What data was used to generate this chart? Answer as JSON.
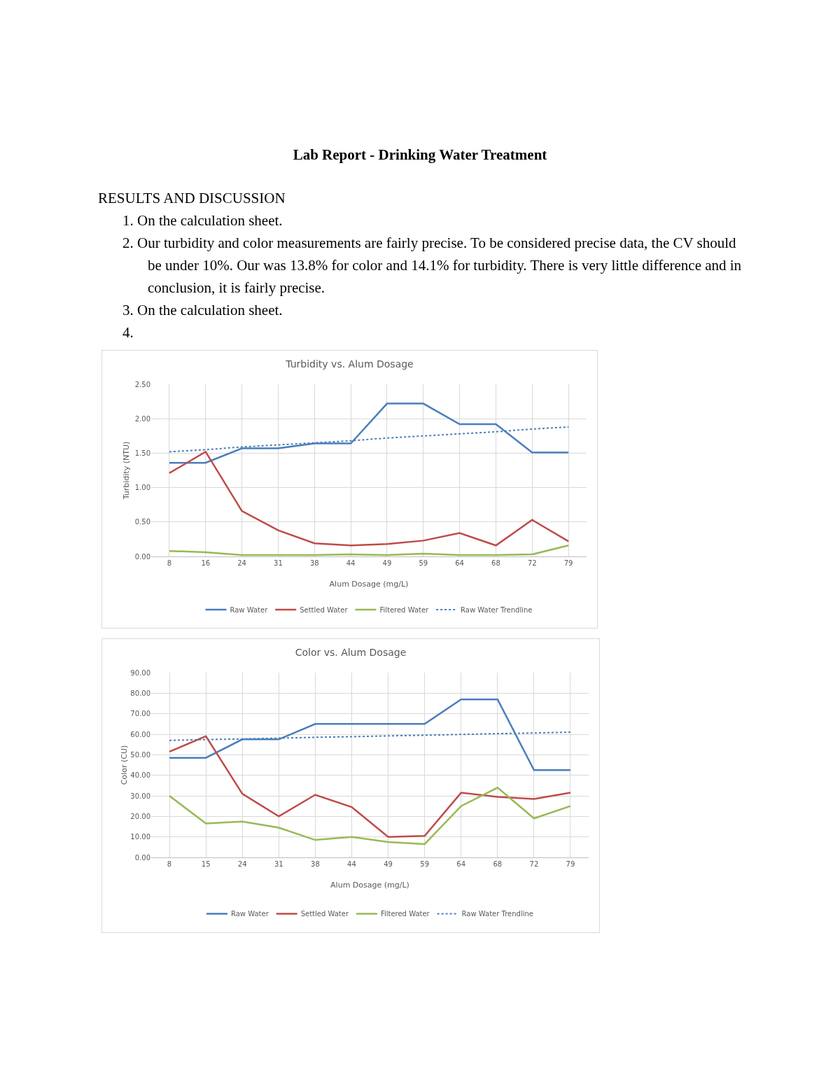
{
  "chart_data": [
    {
      "type": "other",
      "title": "Lab Report - Drinking Water Treatment",
      "subtitle": "RESULTS AND DISCUSSION",
      "annotations": [
        "1. On the calculation sheet.",
        "2. Our turbidity and color measurements are fairly precise. To be considered precise data, the CV should be under 10%. Our was 13.8% for color and 14.1% for turbidity. There is very little difference and in conclusion, it is fairly precise.",
        "3. On the calculation sheet.",
        "4."
      ]
    },
    {
      "type": "line",
      "title": "Turbidity vs. Alum Dosage",
      "xlabel": "Alum Dosage (mg/L)",
      "ylabel": "Turbidity (NTU)",
      "categories": [
        "8",
        "16",
        "24",
        "31",
        "38",
        "44",
        "49",
        "59",
        "64",
        "68",
        "72",
        "79"
      ],
      "ylim": [
        0,
        2.5
      ],
      "yticks": [
        {
          "value": 0,
          "label": "0.00"
        },
        {
          "value": 0.5,
          "label": "0.50"
        },
        {
          "value": 1,
          "label": "1.00"
        },
        {
          "value": 1.5,
          "label": "1.50"
        },
        {
          "value": 2,
          "label": "2.00"
        },
        {
          "value": 2.5,
          "label": "2.50"
        }
      ],
      "grid": true,
      "legend": "bottom",
      "line_style": "solid",
      "marker": "none",
      "series": [
        {
          "name": "Raw Water",
          "color": "#4a7ebb",
          "values": [
            1.36,
            1.36,
            1.57,
            1.57,
            1.64,
            1.64,
            2.22,
            2.22,
            1.92,
            1.92,
            1.51,
            1.51
          ]
        },
        {
          "name": "Settled Water",
          "color": "#be4b48",
          "values": [
            1.21,
            1.52,
            0.66,
            0.38,
            0.19,
            0.16,
            0.18,
            0.23,
            0.34,
            0.16,
            0.53,
            0.22
          ]
        },
        {
          "name": "Filtered Water",
          "color": "#98b954",
          "values": [
            0.08,
            0.06,
            0.02,
            0.02,
            0.02,
            0.03,
            0.02,
            0.04,
            0.02,
            0.02,
            0.03,
            0.16
          ]
        },
        {
          "name": "Raw Water Trendline",
          "color": "#4a7ebb",
          "line_style": "dotted",
          "values": [
            1.52,
            1.55,
            1.59,
            1.62,
            1.65,
            1.68,
            1.72,
            1.75,
            1.78,
            1.81,
            1.85,
            1.88
          ]
        }
      ]
    },
    {
      "type": "line",
      "title": "Color vs. Alum Dosage",
      "xlabel": "Alum Dosage (mg/L)",
      "ylabel": "Color (CU)",
      "categories": [
        "8",
        "15",
        "24",
        "31",
        "38",
        "44",
        "49",
        "59",
        "64",
        "68",
        "72",
        "79"
      ],
      "ylim": [
        0,
        90
      ],
      "yticks": [
        {
          "value": 0,
          "label": "0.00"
        },
        {
          "value": 10,
          "label": "10.00"
        },
        {
          "value": 20,
          "label": "20.00"
        },
        {
          "value": 30,
          "label": "30.00"
        },
        {
          "value": 40,
          "label": "40.00"
        },
        {
          "value": 50,
          "label": "50.00"
        },
        {
          "value": 60,
          "label": "60.00"
        },
        {
          "value": 70,
          "label": "70.00"
        },
        {
          "value": 80,
          "label": "80.00"
        },
        {
          "value": 90,
          "label": "90.00"
        }
      ],
      "grid": true,
      "legend": "bottom",
      "line_style": "solid",
      "marker": "none",
      "series": [
        {
          "name": "Raw Water",
          "color": "#4a7ebb",
          "values": [
            48.5,
            48.5,
            57.5,
            57.5,
            65,
            65,
            65,
            65,
            77,
            77,
            42.5,
            42.5
          ]
        },
        {
          "name": "Settled Water",
          "color": "#be4b48",
          "values": [
            51.5,
            59,
            31,
            20,
            30.5,
            24.5,
            10,
            10.5,
            31.5,
            29.5,
            28.5,
            31.5
          ]
        },
        {
          "name": "Filtered Water",
          "color": "#98b954",
          "values": [
            30,
            16.5,
            17.5,
            14.5,
            8.5,
            10,
            7.5,
            6.5,
            25,
            34,
            19,
            25
          ]
        },
        {
          "name": "Raw Water Trendline",
          "color": "#4a7ebb",
          "line_style": "dotted",
          "values": [
            57,
            57.4,
            57.7,
            58.1,
            58.5,
            58.8,
            59.2,
            59.5,
            59.9,
            60.3,
            60.6,
            61
          ]
        }
      ]
    }
  ]
}
